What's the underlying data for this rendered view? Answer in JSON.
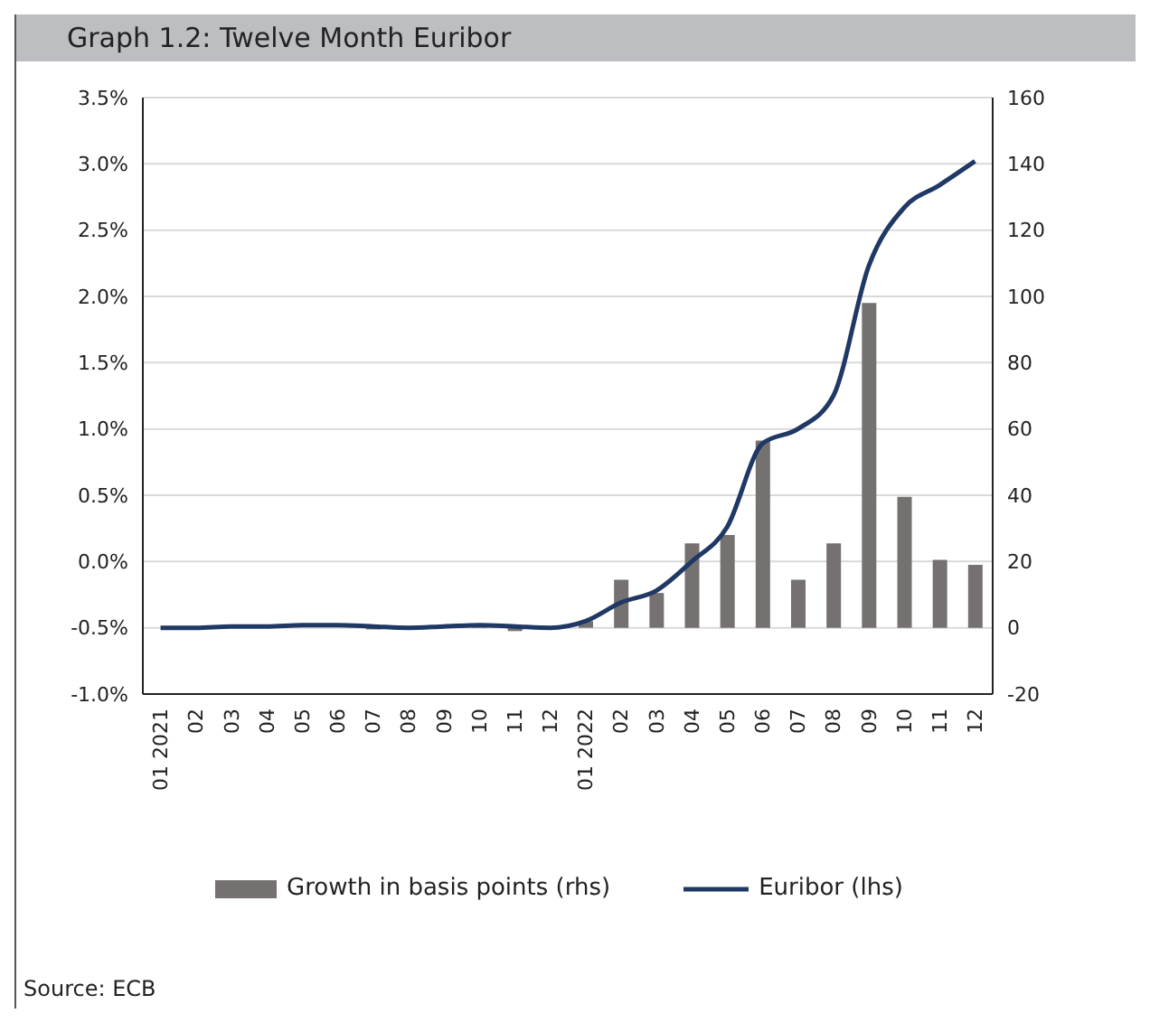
{
  "chart_data": {
    "type": "bar",
    "title": "Graph 1.2: Twelve Month Euribor",
    "categories": [
      "01 2021",
      "02",
      "03",
      "04",
      "05",
      "06",
      "07",
      "08",
      "09",
      "10",
      "11",
      "12",
      "01 2022",
      "02",
      "03",
      "04",
      "05",
      "06",
      "07",
      "08",
      "09",
      "10",
      "11",
      "12"
    ],
    "series": [
      {
        "name": "Growth in basis points (rhs)",
        "axis": "y2",
        "color": "#767171",
        "values": [
          0,
          0,
          null,
          0,
          0,
          0,
          -0.5,
          0,
          0,
          0.5,
          -1,
          null,
          2,
          14.5,
          10.5,
          25.5,
          28,
          56.5,
          14.5,
          25.5,
          98,
          39.5,
          20.5,
          19
        ]
      },
      {
        "name": "Euribor (lhs)",
        "type": "line",
        "color": "#1f3864",
        "values": [
          -0.5,
          -0.5,
          -0.49,
          -0.49,
          -0.48,
          -0.48,
          -0.49,
          -0.5,
          -0.49,
          -0.48,
          -0.49,
          -0.5,
          -0.45,
          -0.31,
          -0.22,
          0.0,
          0.26,
          0.89,
          1.0,
          1.25,
          2.23,
          2.67,
          2.84,
          3.02
        ]
      }
    ],
    "ylim": [
      -1.0,
      3.5
    ],
    "yticks": [
      {
        "value": -1.0,
        "label": "-1.0%"
      },
      {
        "value": -0.5,
        "label": "-0.5%"
      },
      {
        "value": 0,
        "label": "0.0%"
      },
      {
        "value": 0.5,
        "label": "0.5%"
      },
      {
        "value": 1.0,
        "label": "1.0%"
      },
      {
        "value": 1.5,
        "label": "1.5%"
      },
      {
        "value": 2.0,
        "label": "2.0%"
      },
      {
        "value": 2.5,
        "label": "2.5%"
      },
      {
        "value": 3.0,
        "label": "3.0%"
      },
      {
        "value": 3.5,
        "label": "3.5%"
      }
    ],
    "y2lim": [
      -20,
      160
    ],
    "y2ticks": [
      -20,
      0,
      20,
      40,
      60,
      80,
      100,
      120,
      140,
      160
    ],
    "grid": "y",
    "legend": "bottom",
    "marker": "none",
    "line_style": "solid",
    "annotations": [
      "Source: ECB"
    ]
  }
}
